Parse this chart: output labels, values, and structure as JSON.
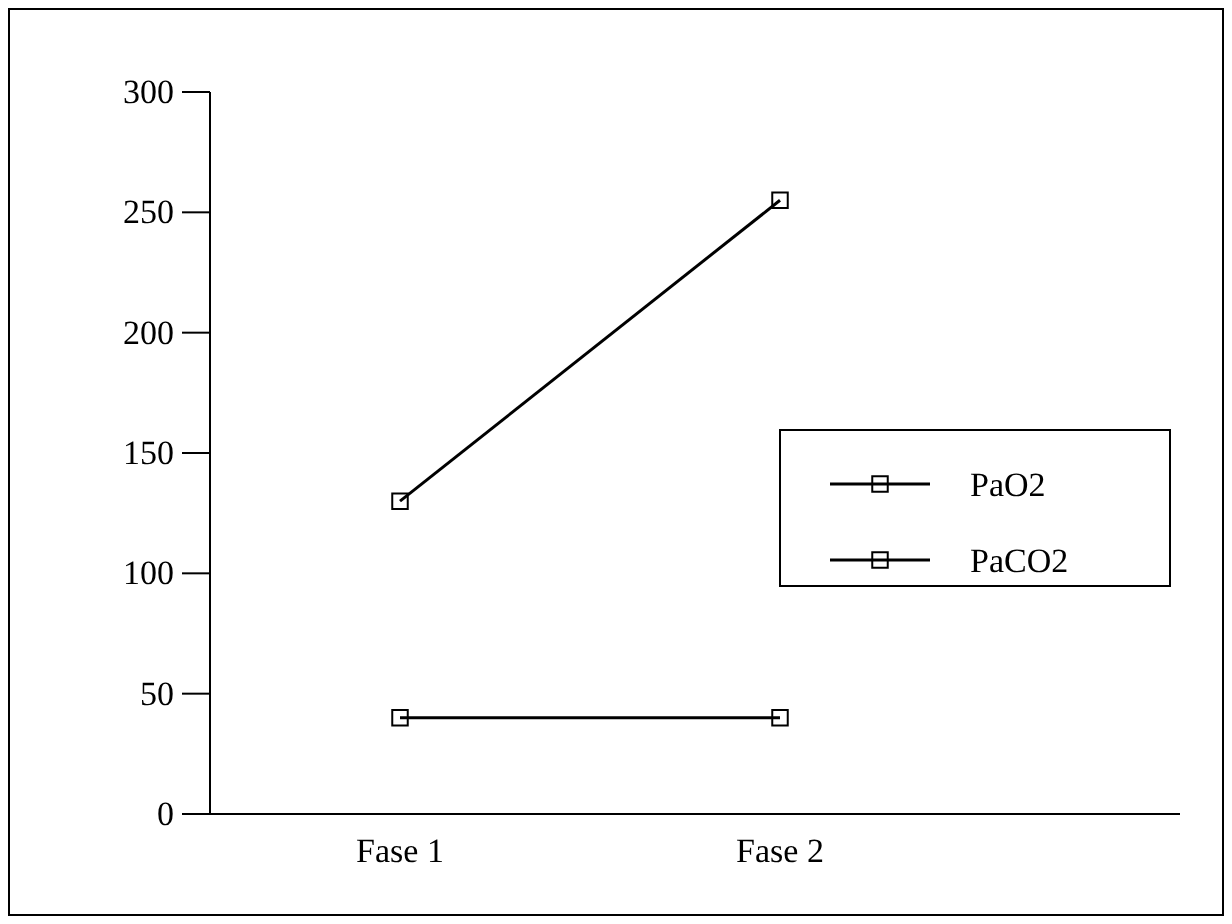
{
  "chart_data": {
    "type": "line",
    "categories": [
      "Fase 1",
      "Fase 2"
    ],
    "series": [
      {
        "name": "PaO2",
        "color": "#000000",
        "values": [
          130,
          255
        ]
      },
      {
        "name": "PaCO2",
        "color": "#000000",
        "values": [
          40,
          40
        ]
      }
    ],
    "ylim": [
      0,
      300
    ],
    "yticks": [
      0,
      50,
      100,
      150,
      200,
      250,
      300
    ],
    "grid": false,
    "legend": "right",
    "marker": "square",
    "line_style": "solid"
  }
}
